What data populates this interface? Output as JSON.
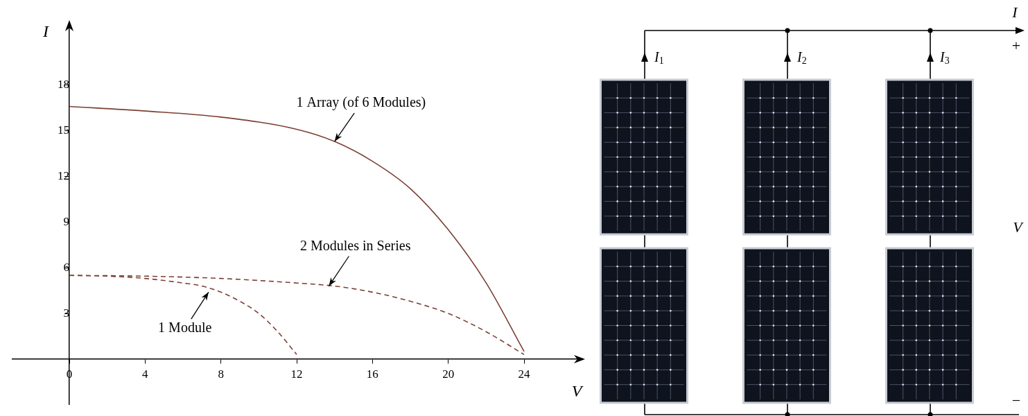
{
  "chart_data": {
    "type": "line",
    "x_label": "V",
    "y_label": "I",
    "xlim": [
      -3,
      27
    ],
    "ylim": [
      -3,
      22
    ],
    "xticks": [
      0,
      4,
      8,
      12,
      16,
      20,
      24
    ],
    "yticks": [
      3,
      6,
      9,
      12,
      15,
      18
    ],
    "grid": false,
    "series": [
      {
        "name": "1 Array (of 6 Modules)",
        "color": "#7b3f33",
        "line_style": "solid",
        "x": [
          0,
          4,
          8,
          12,
          14,
          16,
          18,
          20,
          22,
          24
        ],
        "values": [
          16.6,
          16.3,
          15.9,
          15.1,
          14.3,
          13.0,
          11.2,
          8.5,
          5.0,
          0.5
        ]
      },
      {
        "name": "2 Modules in Series",
        "color": "#7b3f33",
        "line_style": "dashed",
        "x": [
          0,
          4,
          8,
          12,
          14,
          16,
          18,
          20,
          22,
          24
        ],
        "values": [
          5.5,
          5.45,
          5.3,
          5.0,
          4.8,
          4.4,
          3.8,
          3.0,
          1.8,
          0.3
        ]
      },
      {
        "name": "1 Module",
        "color": "#7b3f33",
        "line_style": "dashed",
        "x": [
          0,
          2,
          4,
          6,
          7,
          8,
          9,
          10,
          11,
          12
        ],
        "values": [
          5.5,
          5.45,
          5.3,
          5.0,
          4.8,
          4.4,
          3.8,
          3.0,
          1.8,
          0.3
        ]
      }
    ],
    "annotations": [
      {
        "text": "1 Array (of 6 Modules)",
        "x": 15.4,
        "y": 16.8,
        "arrow_to": [
          14.0,
          14.3
        ]
      },
      {
        "text": "2 Modules in Series",
        "x": 15.1,
        "y": 7.4,
        "arrow_to": [
          13.7,
          4.8
        ]
      },
      {
        "text": "1 Module",
        "x": 6.1,
        "y": 2.0,
        "arrow_to": [
          7.35,
          4.4
        ]
      }
    ]
  },
  "diagram": {
    "modules": {
      "rows": 2,
      "columns": 3
    },
    "branch_currents": [
      {
        "symbol": "I",
        "subscript": "1"
      },
      {
        "symbol": "I",
        "subscript": "2"
      },
      {
        "symbol": "I",
        "subscript": "3"
      }
    ],
    "output_current": "I",
    "positive": "+",
    "negative": "−",
    "voltage": "V"
  }
}
